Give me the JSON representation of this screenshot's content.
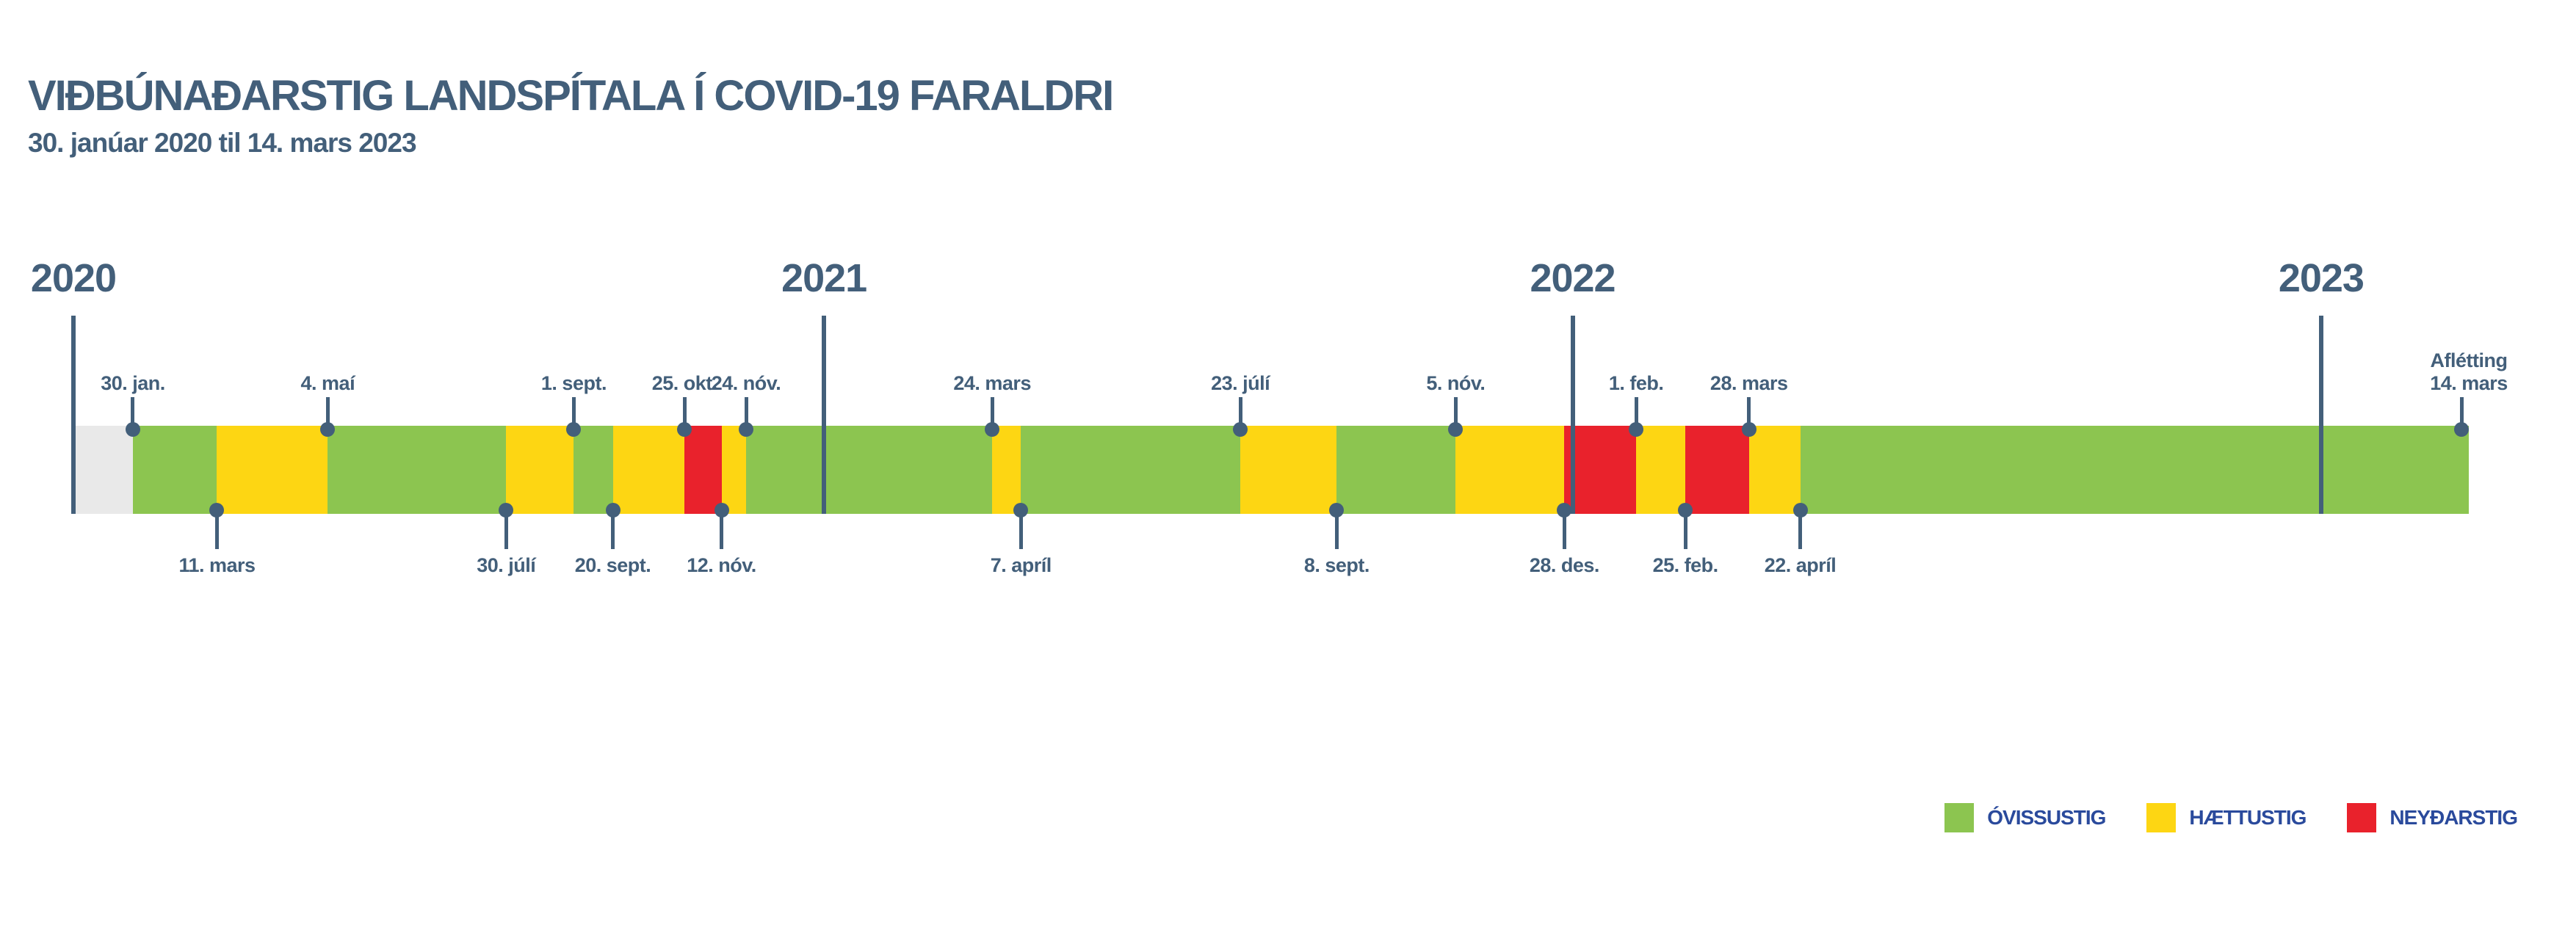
{
  "title": "VIÐBÚNAÐARSTIG LANDSPÍTALA Í COVID-19 FARALDRI",
  "subtitle": "30. janúar 2020 til 14. mars 2023",
  "colors": {
    "background": "#ffffff",
    "text_slate": "#435f7a",
    "legend_text": "#2a4a9c",
    "gray_no_level": "#e9e9e9",
    "green_ovissustig": "#8cc550",
    "yellow_haettustig": "#fdd613",
    "red_neydarstig": "#e9222c"
  },
  "chart_data": {
    "type": "timeline",
    "title": "VIÐBÚNAÐARSTIG LANDSPÍTALA Í COVID-19 FARALDRI",
    "subtitle": "30. janúar 2020 til 14. mars 2023",
    "start": "2020-01-01",
    "end": "2023-03-14",
    "years": [
      {
        "label": "2020",
        "date": "2020-01-01"
      },
      {
        "label": "2021",
        "date": "2021-01-01"
      },
      {
        "label": "2022",
        "date": "2022-01-01"
      },
      {
        "label": "2023",
        "date": "2023-01-01"
      }
    ],
    "levels": {
      "none": {
        "label": "",
        "color": "#e9e9e9"
      },
      "ovissustig": {
        "label": "ÓVISSUSTIG",
        "color": "#8cc550"
      },
      "haettustig": {
        "label": "HÆTTUSTIG",
        "color": "#fdd613"
      },
      "neydarstig": {
        "label": "NEYÐARSTIG",
        "color": "#e9222c"
      }
    },
    "legend_order": [
      "ovissustig",
      "haettustig",
      "neydarstig"
    ],
    "events": [
      {
        "date": "2020-01-30",
        "label": "30. jan.",
        "level": "ovissustig",
        "label_side": "top"
      },
      {
        "date": "2020-03-11",
        "label": "11. mars",
        "level": "haettustig",
        "label_side": "bottom"
      },
      {
        "date": "2020-05-04",
        "label": "4. maí",
        "level": "ovissustig",
        "label_side": "top"
      },
      {
        "date": "2020-07-30",
        "label": "30. júlí",
        "level": "haettustig",
        "label_side": "bottom"
      },
      {
        "date": "2020-09-01",
        "label": "1. sept.",
        "level": "ovissustig",
        "label_side": "top"
      },
      {
        "date": "2020-09-20",
        "label": "20. sept.",
        "level": "haettustig",
        "label_side": "bottom"
      },
      {
        "date": "2020-10-25",
        "label": "25. okt.",
        "level": "neydarstig",
        "label_side": "top"
      },
      {
        "date": "2020-11-12",
        "label": "12. nóv.",
        "level": "haettustig",
        "label_side": "bottom"
      },
      {
        "date": "2020-11-24",
        "label": "24. nóv.",
        "level": "ovissustig",
        "label_side": "top"
      },
      {
        "date": "2021-03-24",
        "label": "24. mars",
        "level": "haettustig",
        "label_side": "top"
      },
      {
        "date": "2021-04-07",
        "label": "7. apríl",
        "level": "ovissustig",
        "label_side": "bottom"
      },
      {
        "date": "2021-07-23",
        "label": "23. júlí",
        "level": "haettustig",
        "label_side": "top"
      },
      {
        "date": "2021-09-08",
        "label": "8. sept.",
        "level": "ovissustig",
        "label_side": "bottom"
      },
      {
        "date": "2021-11-05",
        "label": "5. nóv.",
        "level": "haettustig",
        "label_side": "top"
      },
      {
        "date": "2021-12-28",
        "label": "28. des.",
        "level": "neydarstig",
        "label_side": "bottom"
      },
      {
        "date": "2022-02-01",
        "label": "1. feb.",
        "level": "haettustig",
        "label_side": "top"
      },
      {
        "date": "2022-02-25",
        "label": "25. feb.",
        "level": "neydarstig",
        "label_side": "bottom"
      },
      {
        "date": "2022-03-28",
        "label": "28. mars",
        "level": "haettustig",
        "label_side": "top"
      },
      {
        "date": "2022-04-22",
        "label": "22. apríl",
        "level": "ovissustig",
        "label_side": "bottom"
      },
      {
        "date": "2023-03-14",
        "label": "Aflétting\n14. mars",
        "level": "end",
        "label_side": "top"
      }
    ]
  }
}
